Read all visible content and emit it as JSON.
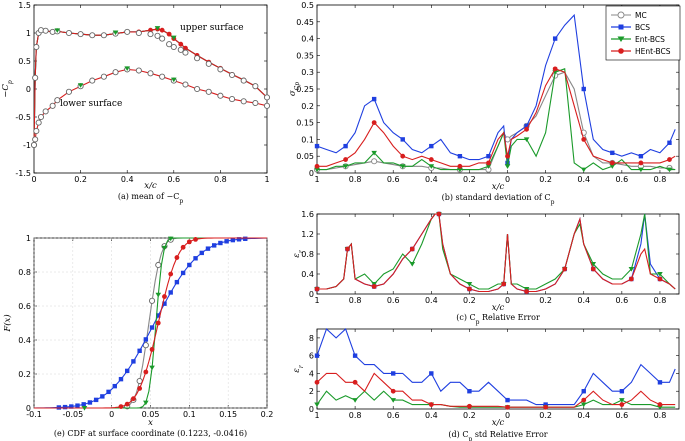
{
  "colors": {
    "MC": "#888888",
    "BCS": "#1f3fe0",
    "Ent-BCS": "#1a9a2a",
    "HEnt-BCS": "#d81e1e"
  },
  "legend": [
    "MC",
    "BCS",
    "Ent-BCS",
    "HEnt-BCS"
  ],
  "chart_data": [
    {
      "id": "a",
      "type": "line",
      "caption": "(a) mean of −C_p",
      "xlabel": "x/c",
      "ylabel": "−C_p",
      "xlim": [
        0,
        1
      ],
      "ylim": [
        -1.5,
        1.5
      ],
      "xticks": [
        0,
        0.2,
        0.4,
        0.6,
        0.8,
        1
      ],
      "yticks": [
        -1.5,
        -1,
        -0.5,
        0,
        0.5,
        1,
        1.5
      ],
      "annotations": [
        "upper surface",
        "lower surface"
      ],
      "upper": {
        "x": [
          0,
          0.005,
          0.01,
          0.02,
          0.03,
          0.05,
          0.08,
          0.1,
          0.15,
          0.2,
          0.25,
          0.3,
          0.35,
          0.4,
          0.45,
          0.5,
          0.53,
          0.55,
          0.58,
          0.6,
          0.63,
          0.65,
          0.7,
          0.75,
          0.8,
          0.85,
          0.9,
          0.95,
          1.0
        ],
        "MC": [
          -1.0,
          0.2,
          0.75,
          1.0,
          1.05,
          1.04,
          1.02,
          1.03,
          1.0,
          0.98,
          0.96,
          0.96,
          0.99,
          1.02,
          1.0,
          0.98,
          0.95,
          0.9,
          0.8,
          0.75,
          0.7,
          0.65,
          0.55,
          0.45,
          0.35,
          0.25,
          0.15,
          0.05,
          -0.15
        ],
        "HEnt": [
          -1.0,
          0.2,
          0.75,
          1.0,
          1.05,
          1.04,
          1.02,
          1.03,
          1.0,
          0.98,
          0.96,
          0.96,
          0.99,
          1.02,
          1.02,
          1.05,
          1.07,
          1.05,
          0.98,
          0.9,
          0.8,
          0.73,
          0.6,
          0.48,
          0.37,
          0.26,
          0.16,
          0.05,
          -0.15
        ]
      },
      "lower": {
        "x": [
          0,
          0.005,
          0.01,
          0.02,
          0.03,
          0.05,
          0.08,
          0.1,
          0.15,
          0.2,
          0.25,
          0.3,
          0.35,
          0.4,
          0.45,
          0.5,
          0.55,
          0.6,
          0.65,
          0.7,
          0.75,
          0.8,
          0.85,
          0.9,
          0.95,
          1.0
        ],
        "MC": [
          -1.0,
          -0.9,
          -0.75,
          -0.6,
          -0.5,
          -0.4,
          -0.3,
          -0.2,
          -0.05,
          0.05,
          0.15,
          0.22,
          0.3,
          0.35,
          0.33,
          0.28,
          0.22,
          0.15,
          0.08,
          0.0,
          -0.05,
          -0.12,
          -0.18,
          -0.22,
          -0.25,
          -0.3
        ]
      }
    },
    {
      "id": "b",
      "type": "line",
      "caption": "(b) standard deviation of C_p",
      "xlabel": "x/c",
      "ylabel": "σ_Cp",
      "xticks": [
        "1",
        "0.8",
        "0.6",
        "0.4",
        "0.2",
        "0",
        "0.2",
        "0.4",
        "0.6",
        "0.8"
      ],
      "xpos": [
        1,
        0.8,
        0.6,
        0.4,
        0.2,
        0,
        -0.2,
        -0.4,
        -0.6,
        -0.8
      ],
      "xlim": [
        1,
        -0.9
      ],
      "ylim": [
        0,
        0.5
      ],
      "yticks": [
        0,
        0.05,
        0.1,
        0.15,
        0.2,
        0.25,
        0.3,
        0.35,
        0.4,
        0.45,
        0.5
      ],
      "ytick_labels": [
        "0",
        "0.05",
        "0.1",
        "0.15",
        "0.2",
        "0.25",
        "0.3",
        "0.35",
        "0.4",
        "0.45",
        "0.5"
      ],
      "x": [
        1,
        0.95,
        0.9,
        0.85,
        0.8,
        0.75,
        0.7,
        0.65,
        0.6,
        0.55,
        0.5,
        0.45,
        0.4,
        0.35,
        0.3,
        0.25,
        0.2,
        0.15,
        0.1,
        0.05,
        0.02,
        0.0,
        -0.02,
        -0.05,
        -0.1,
        -0.15,
        -0.2,
        -0.25,
        -0.3,
        -0.35,
        -0.4,
        -0.45,
        -0.5,
        -0.55,
        -0.6,
        -0.65,
        -0.7,
        -0.75,
        -0.8,
        -0.85,
        -0.88
      ],
      "series": [
        {
          "name": "MC",
          "values": [
            0.01,
            0.01,
            0.015,
            0.02,
            0.025,
            0.03,
            0.035,
            0.03,
            0.025,
            0.02,
            0.02,
            0.02,
            0.015,
            0.015,
            0.01,
            0.01,
            0.01,
            0.01,
            0.01,
            0.08,
            0.12,
            0.1,
            0.11,
            0.12,
            0.14,
            0.17,
            0.23,
            0.29,
            0.3,
            0.25,
            0.12,
            0.05,
            0.03,
            0.03,
            0.025,
            0.02,
            0.02,
            0.02,
            0.015,
            0.015,
            0.01
          ]
        },
        {
          "name": "BCS",
          "values": [
            0.08,
            0.07,
            0.06,
            0.08,
            0.12,
            0.2,
            0.22,
            0.15,
            0.12,
            0.1,
            0.07,
            0.06,
            0.08,
            0.1,
            0.06,
            0.05,
            0.04,
            0.04,
            0.05,
            0.12,
            0.14,
            0.03,
            0.1,
            0.12,
            0.14,
            0.2,
            0.32,
            0.4,
            0.44,
            0.47,
            0.25,
            0.1,
            0.07,
            0.06,
            0.05,
            0.06,
            0.05,
            0.07,
            0.06,
            0.09,
            0.13
          ]
        },
        {
          "name": "Ent-BCS",
          "values": [
            0.01,
            0.01,
            0.02,
            0.02,
            0.03,
            0.03,
            0.06,
            0.03,
            0.03,
            0.02,
            0.02,
            0.04,
            0.02,
            0.01,
            0.01,
            0.01,
            0.01,
            0.01,
            0.02,
            0.08,
            0.12,
            0.02,
            0.08,
            0.1,
            0.1,
            0.05,
            0.12,
            0.3,
            0.31,
            0.03,
            0.01,
            0.03,
            0.01,
            0.02,
            0.04,
            0.01,
            0.01,
            0.01,
            0.02,
            0.01,
            0.01
          ]
        },
        {
          "name": "HEnt-BCS",
          "values": [
            0.02,
            0.02,
            0.03,
            0.04,
            0.06,
            0.1,
            0.15,
            0.12,
            0.08,
            0.05,
            0.04,
            0.05,
            0.04,
            0.03,
            0.02,
            0.02,
            0.02,
            0.03,
            0.03,
            0.1,
            0.12,
            0.05,
            0.1,
            0.11,
            0.13,
            0.18,
            0.26,
            0.31,
            0.3,
            0.2,
            0.1,
            0.05,
            0.04,
            0.03,
            0.03,
            0.03,
            0.03,
            0.03,
            0.03,
            0.04,
            0.05
          ]
        }
      ]
    },
    {
      "id": "c",
      "type": "line",
      "caption": "(c) C_p Relative Error",
      "xlabel": "x/c",
      "ylabel": "ε_r",
      "xticks": [
        "1",
        "0.8",
        "0.6",
        "0.4",
        "0.2",
        "0",
        "0.2",
        "0.4",
        "0.6",
        "0.8"
      ],
      "xpos": [
        1,
        0.8,
        0.6,
        0.4,
        0.2,
        0,
        -0.2,
        -0.4,
        -0.6,
        -0.8
      ],
      "xlim": [
        1,
        -0.9
      ],
      "ylim": [
        0,
        1.6
      ],
      "yticks": [
        0,
        0.4,
        0.8,
        1.2,
        1.6
      ],
      "ytick_labels": [
        "0",
        "0.4",
        "0.8",
        "1.2",
        "1.6"
      ],
      "x": [
        1,
        0.95,
        0.9,
        0.86,
        0.84,
        0.82,
        0.8,
        0.75,
        0.7,
        0.65,
        0.6,
        0.55,
        0.5,
        0.45,
        0.4,
        0.38,
        0.36,
        0.34,
        0.3,
        0.25,
        0.2,
        0.15,
        0.1,
        0.05,
        0.02,
        0.0,
        -0.02,
        -0.05,
        -0.1,
        -0.15,
        -0.2,
        -0.25,
        -0.3,
        -0.35,
        -0.38,
        -0.4,
        -0.45,
        -0.5,
        -0.55,
        -0.6,
        -0.65,
        -0.7,
        -0.72,
        -0.75,
        -0.8,
        -0.85,
        -0.88
      ],
      "series": [
        {
          "name": "BCS",
          "values": [
            0.1,
            0.1,
            0.15,
            0.3,
            0.9,
            1.0,
            0.3,
            0.2,
            0.15,
            0.2,
            0.4,
            0.7,
            0.9,
            1.2,
            1.5,
            1.6,
            1.6,
            1.0,
            0.4,
            0.2,
            0.1,
            0.05,
            0.05,
            0.1,
            0.2,
            1.2,
            0.2,
            0.1,
            0.05,
            0.05,
            0.1,
            0.2,
            0.5,
            1.2,
            1.5,
            1.0,
            0.5,
            0.3,
            0.2,
            0.2,
            0.3,
            1.0,
            1.6,
            0.6,
            0.3,
            0.2,
            0.1
          ]
        },
        {
          "name": "Ent-BCS",
          "values": [
            0.1,
            0.1,
            0.15,
            0.3,
            0.9,
            1.0,
            0.3,
            0.4,
            0.2,
            0.4,
            0.5,
            0.8,
            0.6,
            1.0,
            1.5,
            1.6,
            1.6,
            0.9,
            0.4,
            0.3,
            0.2,
            0.1,
            0.1,
            0.2,
            0.2,
            1.2,
            0.2,
            0.2,
            0.1,
            0.1,
            0.2,
            0.3,
            0.5,
            1.2,
            1.4,
            1.0,
            0.6,
            0.4,
            0.3,
            0.3,
            0.5,
            1.2,
            1.6,
            0.4,
            0.4,
            0.2,
            0.1
          ]
        },
        {
          "name": "HEnt-BCS",
          "values": [
            0.1,
            0.1,
            0.15,
            0.3,
            0.9,
            1.0,
            0.3,
            0.2,
            0.15,
            0.2,
            0.4,
            0.7,
            0.9,
            1.2,
            1.5,
            1.6,
            1.6,
            1.0,
            0.4,
            0.2,
            0.1,
            0.05,
            0.05,
            0.1,
            0.2,
            1.2,
            0.2,
            0.1,
            0.05,
            0.05,
            0.1,
            0.2,
            0.5,
            1.2,
            1.5,
            1.0,
            0.5,
            0.3,
            0.2,
            0.2,
            0.3,
            0.8,
            0.9,
            0.4,
            0.3,
            0.2,
            0.1
          ]
        }
      ]
    },
    {
      "id": "d",
      "type": "line",
      "caption": "(d) C_p std Relative Error",
      "xlabel": "x/c",
      "ylabel": "ε_r",
      "xticks": [
        "1",
        "0.8",
        "0.6",
        "0.4",
        "0.2",
        "0",
        "0.2",
        "0.4",
        "0.6",
        "0.8"
      ],
      "xpos": [
        1,
        0.8,
        0.6,
        0.4,
        0.2,
        0,
        -0.2,
        -0.4,
        -0.6,
        -0.8
      ],
      "xlim": [
        1,
        -0.9
      ],
      "ylim": [
        0,
        9
      ],
      "yticks": [
        0,
        2,
        4,
        6,
        8
      ],
      "ytick_labels": [
        "0",
        "2",
        "4",
        "6",
        "8"
      ],
      "x": [
        1,
        0.95,
        0.9,
        0.85,
        0.8,
        0.75,
        0.7,
        0.65,
        0.6,
        0.55,
        0.5,
        0.45,
        0.4,
        0.35,
        0.3,
        0.25,
        0.2,
        0.15,
        0.1,
        0.05,
        0.0,
        -0.05,
        -0.1,
        -0.15,
        -0.2,
        -0.25,
        -0.3,
        -0.35,
        -0.4,
        -0.45,
        -0.5,
        -0.55,
        -0.6,
        -0.65,
        -0.7,
        -0.75,
        -0.8,
        -0.85,
        -0.88
      ],
      "series": [
        {
          "name": "BCS",
          "values": [
            6,
            9,
            8,
            9,
            6,
            5,
            5,
            4,
            4,
            4,
            3,
            3,
            4,
            2,
            3,
            3,
            2,
            2,
            3,
            2,
            1,
            1,
            1,
            0.5,
            0.5,
            0.5,
            0.5,
            0.5,
            2,
            4,
            3,
            2,
            2,
            3,
            5,
            4,
            3,
            3,
            4.5
          ]
        },
        {
          "name": "Ent-BCS",
          "values": [
            0.5,
            2,
            1,
            1.5,
            1,
            2,
            1,
            2,
            1,
            1,
            0.5,
            0.5,
            0.5,
            0.5,
            0.3,
            0.2,
            0.2,
            0.2,
            0.2,
            0.2,
            0.2,
            0.2,
            0.2,
            0.2,
            0.2,
            0.2,
            0.2,
            0.2,
            0.5,
            1,
            0.5,
            0.5,
            1,
            0.5,
            0.5,
            0.5,
            0.2,
            0.2,
            0.2
          ]
        },
        {
          "name": "HEnt-BCS",
          "values": [
            3,
            4,
            4,
            3,
            3,
            2,
            4,
            3,
            2,
            2,
            1,
            1,
            0.5,
            0.5,
            0.3,
            0.3,
            0.3,
            0.3,
            0.3,
            0.3,
            0.2,
            0.2,
            0.2,
            0.2,
            0.2,
            0.2,
            0.2,
            0.2,
            1,
            2,
            1,
            0.5,
            0.5,
            1,
            2,
            1,
            0.5,
            0.5,
            0.5
          ]
        }
      ]
    },
    {
      "id": "e",
      "type": "line",
      "caption": "(e) CDF at surface coordinate (0.1223, -0.0416)",
      "xlabel": "x",
      "ylabel": "F(x)",
      "xlim": [
        -0.1,
        0.2
      ],
      "ylim": [
        0,
        1
      ],
      "xticks": [
        -0.1,
        -0.05,
        0,
        0.05,
        0.1,
        0.15,
        0.2
      ],
      "xtick_labels": [
        "-0.1",
        "-0.05",
        "0",
        "0.05",
        "0.1",
        "0.15",
        "0.2"
      ],
      "yticks": [
        0,
        0.2,
        0.4,
        0.6,
        0.8,
        1
      ],
      "ytick_labels": [
        "0",
        "0.2",
        "0.4",
        "0.6",
        "0.8",
        "1"
      ],
      "series": [
        {
          "name": "MC",
          "mu": 0.048,
          "sd": 0.012
        },
        {
          "name": "BCS",
          "mu": 0.055,
          "sd": 0.045
        },
        {
          "name": "Ent-BCS",
          "mu": 0.057,
          "sd": 0.007
        },
        {
          "name": "HEnt-BCS",
          "mu": 0.06,
          "sd": 0.02
        }
      ]
    }
  ]
}
